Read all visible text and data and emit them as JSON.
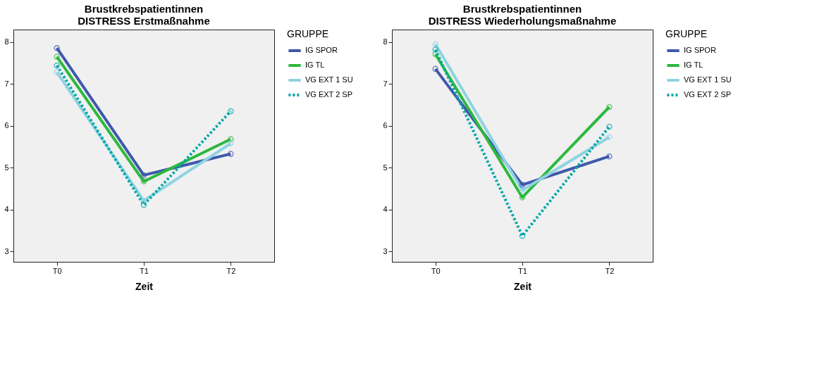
{
  "chart_data": [
    {
      "type": "line",
      "title": "Brustkrebspatientinnen\nDISTRESS Erstmaßnahme",
      "xlabel": "Zeit",
      "legend_title": "GRUPPE",
      "legend": "top right",
      "marker": "circle",
      "grid": false,
      "categories": [
        "T0",
        "T1",
        "T2"
      ],
      "ylim": [
        2.75,
        8.3
      ],
      "yticks": [
        3,
        4,
        5,
        6,
        7,
        8
      ],
      "series": [
        {
          "name": "IG SPOR",
          "color": "#3e58ac",
          "line_style": "solid",
          "values": [
            7.86,
            4.82,
            5.33
          ]
        },
        {
          "name": "IG TL",
          "color": "#2db83d",
          "line_style": "solid",
          "values": [
            7.65,
            4.67,
            5.68
          ]
        },
        {
          "name": "VG EXT 1 SU",
          "color": "#8fd3e0",
          "line_style": "solid",
          "values": [
            7.28,
            4.21,
            5.58
          ]
        },
        {
          "name": "VG EXT 2 SP",
          "color": "#00a8a8",
          "line_style": "dotted",
          "values": [
            7.44,
            4.11,
            6.35
          ]
        }
      ]
    },
    {
      "type": "line",
      "title": "Brustkrebspatientinnen\nDISTRESS Wiederholungsmaßnahme",
      "xlabel": "Zeit",
      "legend_title": "GRUPPE",
      "legend": "top right",
      "marker": "circle",
      "grid": false,
      "categories": [
        "T0",
        "T1",
        "T2"
      ],
      "ylim": [
        2.75,
        8.3
      ],
      "yticks": [
        3,
        4,
        5,
        6,
        7,
        8
      ],
      "series": [
        {
          "name": "IG SPOR",
          "color": "#3e58ac",
          "line_style": "solid",
          "values": [
            7.36,
            4.59,
            5.27
          ]
        },
        {
          "name": "IG TL",
          "color": "#2db83d",
          "line_style": "solid",
          "values": [
            7.71,
            4.29,
            6.45
          ]
        },
        {
          "name": "VG EXT 1 SU",
          "color": "#8fd3e0",
          "line_style": "solid",
          "values": [
            7.95,
            4.46,
            5.73
          ]
        },
        {
          "name": "VG EXT 2 SP",
          "color": "#00a8a8",
          "line_style": "dotted",
          "values": [
            7.82,
            3.37,
            5.98
          ]
        }
      ]
    }
  ]
}
